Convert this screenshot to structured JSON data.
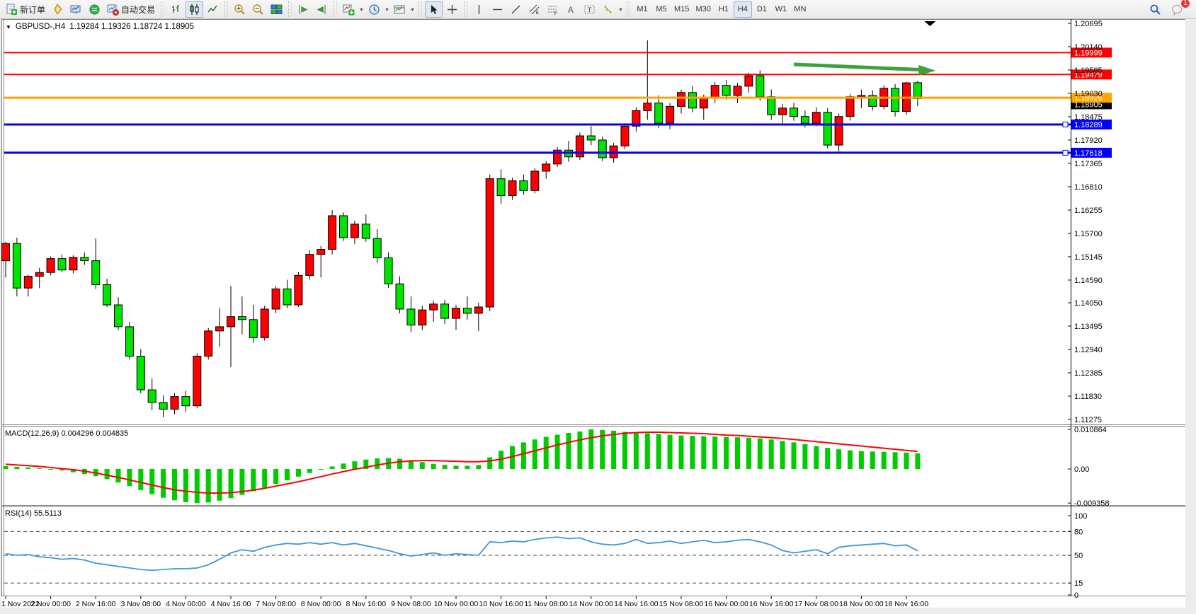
{
  "toolbar": {
    "new_order_label": "新订单",
    "autotrade_label": "自动交易",
    "notification_badge": "1",
    "timeframes": [
      {
        "label": "M1",
        "active": false
      },
      {
        "label": "M5",
        "active": false
      },
      {
        "label": "M15",
        "active": false
      },
      {
        "label": "M30",
        "active": false
      },
      {
        "label": "H1",
        "active": false
      },
      {
        "label": "H4",
        "active": true
      },
      {
        "label": "D1",
        "active": false
      },
      {
        "label": "W1",
        "active": false
      },
      {
        "label": "MN",
        "active": false
      }
    ]
  },
  "chart": {
    "header": {
      "dropdown_glyph": "▼",
      "symbol_period": "GBPUSD-,H4",
      "ohlc": "1.19284 1.19326 1.18724 1.18905"
    },
    "macd": {
      "label": "MACD(12,26,9) 0.004296 0.004835"
    },
    "rsi": {
      "label": "RSI(14) 55.5113"
    }
  },
  "colors": {
    "bull": "#ff0000",
    "bear": "#00e400",
    "wick": "#000000",
    "macd_hist": "#00cc00",
    "macd_signal": "#ff0000",
    "rsi_line": "#4296d6",
    "level_red": "#ff0000",
    "level_orange": "#ffa500",
    "level_blue": "#0000ff",
    "bid_black": "#000000",
    "arrow_green": "#3da13d",
    "axis_text": "#000000",
    "panel_bg": "#ffffff",
    "frame": "#808080"
  },
  "chart_data": [
    {
      "type": "candlestick",
      "title": "GBPUSD-,H4",
      "symbol": "GBPUSD-",
      "timeframe": "H4",
      "current_ohlc": {
        "open": "1.19284",
        "high": "1.19326",
        "low": "1.18724",
        "close": "1.18905"
      },
      "start_time": "1 Nov 2022 08:00",
      "interval": "4h",
      "weekends_skipped": true,
      "x_labels": [
        "1 Nov 2022",
        "2 Nov 00:00",
        "2 Nov 16:00",
        "3 Nov 08:00",
        "4 Nov 00:00",
        "4 Nov 16:00",
        "7 Nov 08:00",
        "8 Nov 00:00",
        "8 Nov 16:00",
        "9 Nov 08:00",
        "10 Nov 00:00",
        "10 Nov 16:00",
        "11 Nov 08:00",
        "14 Nov 00:00",
        "14 Nov 16:00",
        "15 Nov 08:00",
        "16 Nov 00:00",
        "16 Nov 16:00",
        "17 Nov 08:00",
        "18 Nov 00:00",
        "18 Nov 16:00"
      ],
      "x_label_every_n_candles": 4,
      "y_ticks": [
        "1.20695",
        "1.20140",
        "1.19585",
        "1.19030",
        "1.18475",
        "1.17920",
        "1.17365",
        "1.16810",
        "1.16255",
        "1.15700",
        "1.15145",
        "1.14590",
        "1.14050",
        "1.13495",
        "1.12940",
        "1.12385",
        "1.11830",
        "1.11275"
      ],
      "ylim": [
        1.11275,
        1.20695
      ],
      "candles": [
        [
          1.1505,
          1.155,
          1.1465,
          1.1546
        ],
        [
          1.1546,
          1.156,
          1.142,
          1.144
        ],
        [
          1.144,
          1.1472,
          1.142,
          1.1468
        ],
        [
          1.1468,
          1.1488,
          1.144,
          1.1477
        ],
        [
          1.1477,
          1.1515,
          1.147,
          1.151
        ],
        [
          1.151,
          1.152,
          1.1478,
          1.1483
        ],
        [
          1.1483,
          1.1518,
          1.1475,
          1.1513
        ],
        [
          1.1513,
          1.1525,
          1.1495,
          1.1505
        ],
        [
          1.1505,
          1.1558,
          1.1438,
          1.1448
        ],
        [
          1.1448,
          1.1462,
          1.1395,
          1.14
        ],
        [
          1.14,
          1.1418,
          1.134,
          1.1348
        ],
        [
          1.1348,
          1.136,
          1.127,
          1.1278
        ],
        [
          1.1278,
          1.1295,
          1.119,
          1.1198
        ],
        [
          1.1198,
          1.1225,
          1.115,
          1.1168
        ],
        [
          1.1168,
          1.1185,
          1.1133,
          1.1152
        ],
        [
          1.1152,
          1.119,
          1.114,
          1.1182
        ],
        [
          1.1182,
          1.1195,
          1.1145,
          1.116
        ],
        [
          1.116,
          1.1285,
          1.1155,
          1.1278
        ],
        [
          1.1278,
          1.1345,
          1.127,
          1.1338
        ],
        [
          1.1338,
          1.1392,
          1.13,
          1.1348
        ],
        [
          1.1348,
          1.1445,
          1.1252,
          1.1372
        ],
        [
          1.1372,
          1.142,
          1.133,
          1.1365
        ],
        [
          1.1365,
          1.14,
          1.131,
          1.1322
        ],
        [
          1.1322,
          1.1398,
          1.1315,
          1.139
        ],
        [
          1.139,
          1.1445,
          1.138,
          1.1438
        ],
        [
          1.1438,
          1.146,
          1.1392,
          1.14
        ],
        [
          1.14,
          1.1478,
          1.1395,
          1.147
        ],
        [
          1.147,
          1.153,
          1.146,
          1.152
        ],
        [
          1.152,
          1.154,
          1.1465,
          1.1532
        ],
        [
          1.1532,
          1.1625,
          1.152,
          1.1612
        ],
        [
          1.1612,
          1.162,
          1.1552,
          1.156
        ],
        [
          1.156,
          1.16,
          1.1545,
          1.1592
        ],
        [
          1.1592,
          1.1615,
          1.155,
          1.1558
        ],
        [
          1.1558,
          1.158,
          1.15,
          1.1512
        ],
        [
          1.1512,
          1.1525,
          1.144,
          1.145
        ],
        [
          1.145,
          1.1468,
          1.138,
          1.139
        ],
        [
          1.139,
          1.142,
          1.1335,
          1.1352
        ],
        [
          1.1352,
          1.1398,
          1.134,
          1.1388
        ],
        [
          1.1388,
          1.141,
          1.136,
          1.1402
        ],
        [
          1.1402,
          1.1412,
          1.1355,
          1.1368
        ],
        [
          1.1368,
          1.14,
          1.134,
          1.1392
        ],
        [
          1.1392,
          1.142,
          1.1365,
          1.138
        ],
        [
          1.138,
          1.1405,
          1.1338,
          1.1395
        ],
        [
          1.1395,
          1.171,
          1.1385,
          1.17
        ],
        [
          1.17,
          1.1722,
          1.164,
          1.166
        ],
        [
          1.166,
          1.1702,
          1.165,
          1.1695
        ],
        [
          1.1695,
          1.171,
          1.1662,
          1.1672
        ],
        [
          1.1672,
          1.1725,
          1.1665,
          1.1718
        ],
        [
          1.1718,
          1.1742,
          1.17,
          1.1735
        ],
        [
          1.1735,
          1.1775,
          1.1728,
          1.1768
        ],
        [
          1.1768,
          1.179,
          1.174,
          1.1752
        ],
        [
          1.1752,
          1.181,
          1.1745,
          1.1802
        ],
        [
          1.1802,
          1.1825,
          1.178,
          1.1792
        ],
        [
          1.1792,
          1.18,
          1.1742,
          1.175
        ],
        [
          1.175,
          1.1785,
          1.1738,
          1.1778
        ],
        [
          1.1778,
          1.1832,
          1.177,
          1.1825
        ],
        [
          1.1825,
          1.187,
          1.1812,
          1.1862
        ],
        [
          1.1862,
          1.2029,
          1.184,
          1.188
        ],
        [
          1.188,
          1.1898,
          1.182,
          1.1832
        ],
        [
          1.1832,
          1.188,
          1.1818,
          1.1872
        ],
        [
          1.1872,
          1.1912,
          1.1855,
          1.1905
        ],
        [
          1.1905,
          1.192,
          1.1858,
          1.1868
        ],
        [
          1.1868,
          1.19,
          1.184,
          1.1892
        ],
        [
          1.1892,
          1.193,
          1.188,
          1.1922
        ],
        [
          1.1922,
          1.1935,
          1.1888,
          1.1898
        ],
        [
          1.1898,
          1.1928,
          1.188,
          1.192
        ],
        [
          1.192,
          1.1952,
          1.1905,
          1.1945
        ],
        [
          1.1945,
          1.1958,
          1.1885,
          1.1895
        ],
        [
          1.1895,
          1.1912,
          1.184,
          1.1852
        ],
        [
          1.1852,
          1.1878,
          1.183,
          1.1868
        ],
        [
          1.1868,
          1.188,
          1.1838,
          1.1848
        ],
        [
          1.1848,
          1.1862,
          1.1822,
          1.1832
        ],
        [
          1.1832,
          1.187,
          1.1825,
          1.1858
        ],
        [
          1.1858,
          1.1868,
          1.1772,
          1.178
        ],
        [
          1.178,
          1.1855,
          1.1765,
          1.1848
        ],
        [
          1.1848,
          1.1902,
          1.1838,
          1.1895
        ],
        [
          1.1895,
          1.1912,
          1.1868,
          1.1898
        ],
        [
          1.1898,
          1.191,
          1.1862,
          1.1872
        ],
        [
          1.1872,
          1.1922,
          1.1865,
          1.1915
        ],
        [
          1.1915,
          1.1925,
          1.1848,
          1.186
        ],
        [
          1.186,
          1.193,
          1.1852,
          1.1928
        ],
        [
          1.19284,
          1.19326,
          1.18724,
          1.18905
        ]
      ],
      "levels": [
        {
          "price": 1.18905,
          "label": "1.18905",
          "color": "#000000",
          "width": 1,
          "axis_box_only": true,
          "box_offset": 8
        },
        {
          "price": 1.19999,
          "label": "1.19999",
          "color": "#ff0000",
          "width": 2
        },
        {
          "price": 1.19479,
          "label": "1.19479",
          "color": "#ff0000",
          "width": 2
        },
        {
          "price": 1.18926,
          "label": "1.18926",
          "color": "#ffa500",
          "width": 3
        },
        {
          "price": 1.18289,
          "label": "1.18289",
          "color": "#0000ff",
          "width": 3,
          "handle": true
        },
        {
          "price": 1.17618,
          "label": "1.17618",
          "color": "#0000ff",
          "width": 3,
          "handle": true
        }
      ],
      "annotations": {
        "trend_arrow": {
          "x1_candle": 70.0,
          "price1": 1.1972,
          "x2_candle": 82.6,
          "price2": 1.1957,
          "color": "#3da13d"
        },
        "shift_marker": {
          "x_candle": 82.1,
          "color": "#000000"
        }
      }
    },
    {
      "type": "bar",
      "name": "MACD",
      "params": "12,26,9",
      "label": "MACD(12,26,9) 0.004296 0.004835",
      "macd_value": "0.004296",
      "signal_value": "0.004835",
      "y_ticks": [
        "0.010864",
        "0.00",
        "-0.009358"
      ],
      "ylim": [
        -0.009358,
        0.010864
      ],
      "histogram": [
        0.0008,
        0.0006,
        0.0004,
        0.0002,
        0.0,
        -0.0004,
        -0.0009,
        -0.0014,
        -0.002,
        -0.0028,
        -0.0037,
        -0.0047,
        -0.0058,
        -0.0069,
        -0.0079,
        -0.0086,
        -0.0091,
        -0.00936,
        -0.0092,
        -0.0087,
        -0.008,
        -0.0071,
        -0.0061,
        -0.0051,
        -0.0041,
        -0.0031,
        -0.0021,
        -0.0011,
        -0.0002,
        0.0007,
        0.0015,
        0.0021,
        0.0026,
        0.0029,
        0.003,
        0.0028,
        0.0024,
        0.0019,
        0.0014,
        0.0011,
        0.0009,
        0.0009,
        0.0011,
        0.0032,
        0.005,
        0.0063,
        0.0073,
        0.0081,
        0.0088,
        0.0094,
        0.0099,
        0.0103,
        0.01086,
        0.0107,
        0.0105,
        0.0102,
        0.01,
        0.0098,
        0.0096,
        0.0094,
        0.0092,
        0.0091,
        0.009,
        0.0089,
        0.0088,
        0.0087,
        0.0086,
        0.0084,
        0.0081,
        0.0077,
        0.0073,
        0.0068,
        0.0063,
        0.0058,
        0.0054,
        0.0051,
        0.0049,
        0.0048,
        0.0047,
        0.0046,
        0.0045,
        0.004296
      ],
      "signal": [
        0.0013,
        0.0011,
        0.0009,
        0.0007,
        0.0004,
        0.0001,
        -0.0002,
        -0.0006,
        -0.0011,
        -0.0017,
        -0.0023,
        -0.003,
        -0.0037,
        -0.0044,
        -0.0051,
        -0.0057,
        -0.0061,
        -0.0064,
        -0.0066,
        -0.0066,
        -0.0065,
        -0.0062,
        -0.0058,
        -0.0053,
        -0.0047,
        -0.0041,
        -0.0035,
        -0.0028,
        -0.0021,
        -0.0014,
        -0.0007,
        -0.0001,
        0.0005,
        0.0011,
        0.0016,
        0.002,
        0.0022,
        0.0023,
        0.0023,
        0.0022,
        0.0021,
        0.002,
        0.002,
        0.0022,
        0.0027,
        0.0034,
        0.0042,
        0.005,
        0.0058,
        0.0066,
        0.0073,
        0.008,
        0.0086,
        0.0091,
        0.0095,
        0.0098,
        0.01,
        0.0101,
        0.0101,
        0.01,
        0.0099,
        0.0098,
        0.0097,
        0.0095,
        0.0093,
        0.0092,
        0.009,
        0.0088,
        0.0086,
        0.0084,
        0.0081,
        0.0078,
        0.0075,
        0.0072,
        0.0069,
        0.0066,
        0.0063,
        0.006,
        0.0057,
        0.0054,
        0.0051,
        0.004835
      ]
    },
    {
      "type": "line",
      "name": "RSI",
      "params": "14",
      "label": "RSI(14) 55.5113",
      "value": "55.5113",
      "y_ticks": [
        "100",
        "80",
        "50",
        "15",
        "0"
      ],
      "level_lines": [
        80,
        50,
        15
      ],
      "ylim": [
        0,
        100
      ],
      "values": [
        52,
        50,
        51,
        48,
        47,
        45,
        46,
        44,
        40,
        38,
        36,
        34,
        32,
        31,
        32,
        33,
        33,
        34,
        38,
        45,
        53,
        57,
        55,
        60,
        63,
        65,
        64,
        66,
        64,
        66,
        63,
        65,
        62,
        59,
        56,
        52,
        49,
        51,
        53,
        50,
        52,
        51,
        50,
        67,
        66,
        68,
        67,
        70,
        72,
        73,
        71,
        72,
        67,
        64,
        63,
        65,
        70,
        65,
        66,
        68,
        65,
        67,
        69,
        66,
        67,
        69,
        70,
        67,
        63,
        56,
        53,
        55,
        57,
        52,
        60,
        62,
        63,
        64,
        65,
        62,
        63,
        55.51
      ]
    }
  ]
}
